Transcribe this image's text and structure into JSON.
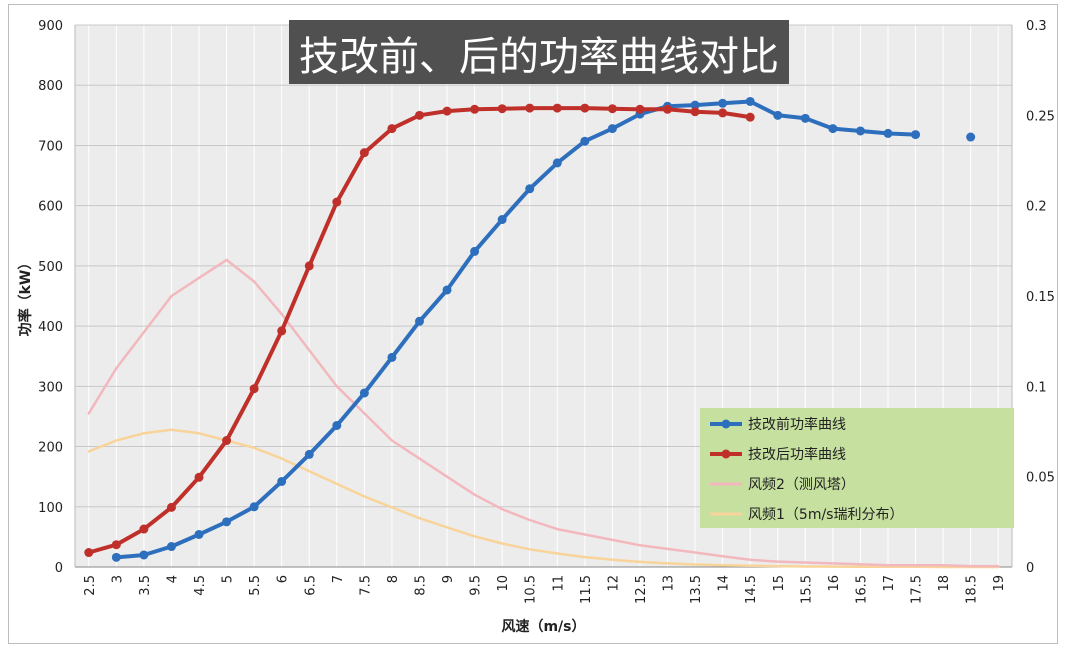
{
  "chart_data": {
    "type": "line",
    "title": "技改前、后的功率曲线对比",
    "xlabel": "风速（m/s）",
    "ylabel": "功率（kW）",
    "x_ticks": [
      "2.5",
      "3",
      "3.5",
      "4",
      "4.5",
      "5",
      "5.5",
      "6",
      "6.5",
      "7",
      "7.5",
      "8",
      "8.5",
      "9",
      "9.5",
      "10",
      "10.5",
      "11",
      "11.5",
      "12",
      "12.5",
      "13",
      "13.5",
      "14",
      "14.5",
      "15",
      "15.5",
      "16",
      "16.5",
      "17",
      "17.5",
      "18",
      "18.5",
      "19"
    ],
    "ylim_left": [
      0,
      900
    ],
    "y_ticks_left": [
      "0",
      "100",
      "200",
      "300",
      "400",
      "500",
      "600",
      "700",
      "800",
      "900"
    ],
    "ylim_right": [
      0,
      0.3
    ],
    "y_ticks_right": [
      "0",
      "0.05",
      "0.1",
      "0.15",
      "0.2",
      "0.25",
      "0.3"
    ],
    "grid": true,
    "legend_position": "right",
    "series": [
      {
        "name": "技改前功率曲线",
        "axis": "left",
        "color": "#2e6fbd",
        "markers": true,
        "x": [
          3,
          3.5,
          4,
          4.5,
          5,
          5.5,
          6,
          6.5,
          7,
          7.5,
          8,
          8.5,
          9,
          9.5,
          10,
          10.5,
          11,
          11.5,
          12,
          12.5,
          13,
          13.5,
          14,
          14.5,
          15,
          15.5,
          16,
          16.5,
          17,
          17.5,
          null,
          18.5
        ],
        "values": [
          16,
          20,
          34,
          54,
          75,
          100,
          142,
          187,
          235,
          289,
          348,
          408,
          460,
          524,
          577,
          628,
          671,
          707,
          728,
          752,
          765,
          767,
          770,
          773,
          750,
          745,
          728,
          724,
          720,
          718,
          null,
          714
        ]
      },
      {
        "name": "技改后功率曲线",
        "axis": "left",
        "color": "#c0302a",
        "markers": true,
        "x": [
          2.5,
          3,
          3.5,
          4,
          4.5,
          5,
          5.5,
          6,
          6.5,
          7,
          7.5,
          8,
          8.5,
          9,
          9.5,
          10,
          10.5,
          11,
          11.5,
          12,
          12.5,
          13,
          13.5,
          14,
          14.5
        ],
        "values": [
          24,
          37,
          63,
          99,
          149,
          210,
          296,
          392,
          500,
          606,
          688,
          728,
          750,
          757,
          760,
          761,
          762,
          762,
          762,
          761,
          760,
          760,
          756,
          754,
          747
        ]
      },
      {
        "name": "风频2（测风塔）",
        "axis": "right",
        "color": "#f2b8bd",
        "markers": false,
        "x": [
          2.5,
          3,
          3.5,
          4,
          4.5,
          5,
          5.5,
          6,
          6.5,
          7,
          7.5,
          8,
          8.5,
          9,
          9.5,
          10,
          10.5,
          11,
          11.5,
          12,
          12.5,
          13,
          13.5,
          14,
          14.5,
          15,
          15.5,
          16,
          16.5,
          17,
          17.5,
          18,
          18.5,
          19
        ],
        "values": [
          0.085,
          0.11,
          0.13,
          0.15,
          0.16,
          0.17,
          0.158,
          0.14,
          0.12,
          0.1,
          0.085,
          0.07,
          0.06,
          0.05,
          0.04,
          0.032,
          0.026,
          0.021,
          0.018,
          0.015,
          0.012,
          0.01,
          0.008,
          0.006,
          0.004,
          0.003,
          0.0025,
          0.002,
          0.0015,
          0.001,
          0.001,
          0.001,
          0.0005,
          0.0005
        ]
      },
      {
        "name": "风频1（5m/s瑞利分布）",
        "axis": "right",
        "color": "#f8d49a",
        "markers": false,
        "x": [
          2.5,
          3,
          3.5,
          4,
          4.5,
          5,
          5.5,
          6,
          6.5,
          7,
          7.5,
          8,
          8.5,
          9,
          9.5,
          10,
          10.5,
          11,
          11.5,
          12,
          12.5,
          13,
          13.5,
          14,
          14.5,
          15,
          15.5,
          16,
          16.5,
          17,
          17.5,
          18,
          18.5,
          19
        ],
        "values": [
          0.064,
          0.07,
          0.074,
          0.076,
          0.074,
          0.07,
          0.066,
          0.06,
          0.053,
          0.046,
          0.039,
          0.033,
          0.027,
          0.022,
          0.017,
          0.013,
          0.0098,
          0.0075,
          0.0055,
          0.004,
          0.0028,
          0.002,
          0.0014,
          0.001,
          0.0007,
          0.0005,
          0.0003,
          0.0002,
          0.0001,
          0.0001,
          0.0001,
          0,
          0,
          0
        ]
      }
    ]
  }
}
